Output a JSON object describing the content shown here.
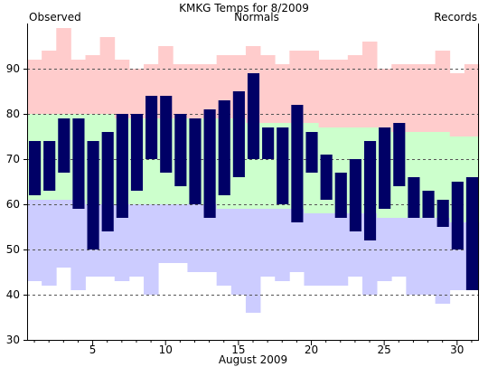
{
  "chart_data": {
    "type": "bar",
    "title": "KMKG Temps for 8/2009",
    "xlabel": "August 2009",
    "ylabel": "",
    "ylim": [
      30,
      100
    ],
    "y_ticks": [
      30,
      40,
      50,
      60,
      70,
      80,
      90
    ],
    "x_ticks": [
      5,
      10,
      15,
      20,
      25,
      30
    ],
    "days": [
      1,
      2,
      3,
      4,
      5,
      6,
      7,
      8,
      9,
      10,
      11,
      12,
      13,
      14,
      15,
      16,
      17,
      18,
      19,
      20,
      21,
      22,
      23,
      24,
      25,
      26,
      27,
      28,
      29,
      30,
      31
    ],
    "legend": [
      {
        "name": "Observed",
        "color": "#000066",
        "position": "top-left"
      },
      {
        "name": "Normals",
        "color": "#006600",
        "position": "top-center"
      },
      {
        "name": "Records",
        "color": "#bb88cc",
        "position": "top-right"
      }
    ],
    "grid": "horizontal dashed at 40, 50, 60, 70, 80, 90",
    "series": [
      {
        "name": "Observed",
        "kind": "high-low",
        "high": [
          74,
          74,
          79,
          79,
          74,
          76,
          80,
          80,
          84,
          84,
          80,
          79,
          81,
          83,
          85,
          89,
          77,
          77,
          82,
          76,
          71,
          67,
          70,
          74,
          77,
          78,
          66,
          63,
          61,
          65,
          66
        ],
        "low": [
          62,
          63,
          67,
          59,
          50,
          54,
          57,
          63,
          70,
          67,
          64,
          60,
          57,
          62,
          66,
          70,
          70,
          60,
          56,
          67,
          61,
          57,
          54,
          52,
          59,
          64,
          57,
          57,
          55,
          50,
          41
        ]
      },
      {
        "name": "Normals",
        "kind": "band",
        "high": [
          80,
          80,
          80,
          80,
          80,
          80,
          79,
          79,
          79,
          79,
          79,
          79,
          79,
          79,
          79,
          78,
          78,
          78,
          78,
          78,
          77,
          77,
          77,
          77,
          77,
          76,
          76,
          76,
          76,
          75,
          75
        ],
        "low": [
          61,
          61,
          61,
          61,
          60,
          60,
          60,
          60,
          60,
          60,
          60,
          60,
          60,
          59,
          59,
          59,
          59,
          59,
          59,
          58,
          58,
          58,
          58,
          58,
          57,
          57,
          57,
          57,
          57,
          56,
          56
        ]
      },
      {
        "name": "Records",
        "kind": "band",
        "high": [
          92,
          94,
          99,
          92,
          93,
          97,
          92,
          90,
          91,
          95,
          91,
          91,
          91,
          93,
          93,
          95,
          93,
          91,
          94,
          94,
          92,
          92,
          93,
          96,
          90,
          91,
          91,
          91,
          94,
          89,
          91
        ],
        "low": [
          43,
          42,
          46,
          41,
          44,
          44,
          43,
          44,
          40,
          47,
          47,
          45,
          45,
          42,
          40,
          36,
          44,
          43,
          45,
          42,
          42,
          42,
          44,
          40,
          43,
          44,
          40,
          40,
          38,
          41,
          41
        ]
      }
    ],
    "colors": {
      "observed": "#000066",
      "normals_band": "#ccffcc",
      "records_high_band": "#ffcccc",
      "records_low_band": "#ccccff",
      "grid": "#555555"
    }
  }
}
